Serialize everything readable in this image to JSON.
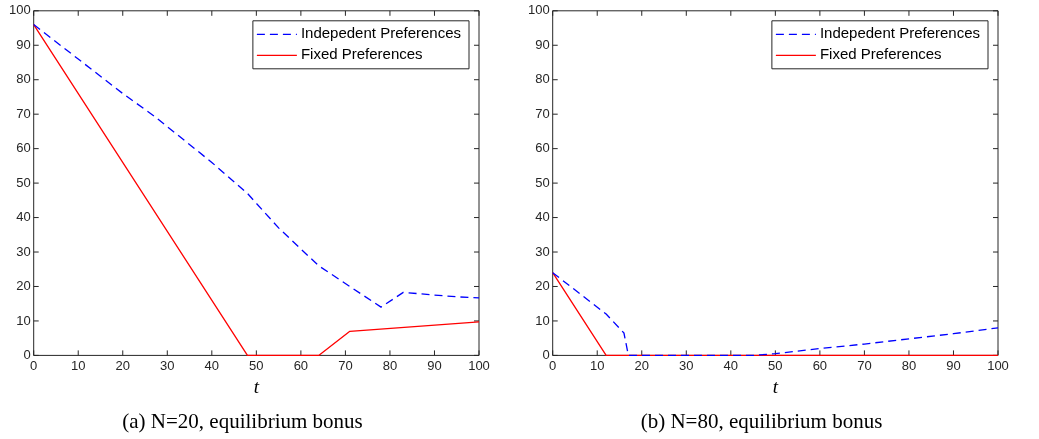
{
  "chart_data": [
    {
      "type": "line",
      "title": "(a) N=20, equilibrium bonus",
      "xlabel": "t",
      "xlim": [
        0,
        100
      ],
      "xticks": [
        0,
        10,
        20,
        30,
        40,
        50,
        60,
        70,
        80,
        90,
        100
      ],
      "ylim": [
        0,
        100
      ],
      "yticks": [
        0,
        10,
        20,
        30,
        40,
        50,
        60,
        70,
        80,
        90,
        100
      ],
      "legend": "top right",
      "marker": "none",
      "series": [
        {
          "name": "Indepedent Preferences",
          "color": "#0000ff",
          "line_style": "dashed",
          "x": [
            0,
            10,
            20,
            27,
            40,
            48,
            55,
            64,
            71,
            78,
            83,
            90,
            95,
            100
          ],
          "values": [
            96,
            86,
            76,
            69.5,
            56,
            47,
            37,
            26,
            20,
            14,
            18.3,
            17.5,
            17,
            16.7
          ]
        },
        {
          "name": "Fixed Preferences",
          "color": "#ff0000",
          "line_style": "solid",
          "x": [
            0,
            48,
            64,
            71,
            100
          ],
          "values": [
            96,
            0,
            0,
            7,
            9.7
          ]
        }
      ]
    },
    {
      "type": "line",
      "title": "(b) N=80, equilibrium bonus",
      "xlabel": "t",
      "xlim": [
        0,
        100
      ],
      "xticks": [
        0,
        10,
        20,
        30,
        40,
        50,
        60,
        70,
        80,
        90,
        100
      ],
      "ylim": [
        0,
        100
      ],
      "yticks": [
        0,
        10,
        20,
        30,
        40,
        50,
        60,
        70,
        80,
        90,
        100
      ],
      "legend": "top right",
      "marker": "none",
      "series": [
        {
          "name": "Indepedent Preferences",
          "color": "#0000ff",
          "line_style": "dashed",
          "x": [
            0,
            12,
            16,
            17,
            45,
            50,
            60,
            70,
            80,
            90,
            100
          ],
          "values": [
            24,
            12,
            6.5,
            0,
            0,
            0.5,
            2,
            3.3,
            4.8,
            6.3,
            8
          ]
        },
        {
          "name": "Fixed Preferences",
          "color": "#ff0000",
          "line_style": "solid",
          "x": [
            0,
            12,
            100
          ],
          "values": [
            24,
            0,
            0
          ]
        }
      ]
    }
  ]
}
